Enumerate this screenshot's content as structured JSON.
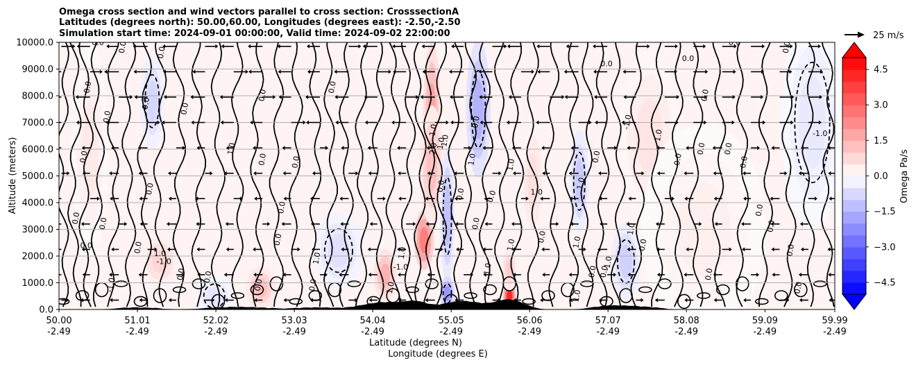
{
  "chart_data": {
    "type": "contourf",
    "title_lines": [
      "Omega cross section and wind vectors parallel to cross section: CrosssectionA",
      "Latitudes (degrees north): 50.00,60.00, Longitudes (degrees east): -2.50,-2.50",
      "Simulation start time: 2024-09-01 00:00:00, Valid time: 2024-09-02 22:00:00"
    ],
    "ylabel": "Altitude (meters)",
    "xlabel_lines": [
      "Latitude (degrees N)",
      "Longitude (degrees E)"
    ],
    "ylim": [
      0,
      10000
    ],
    "xlim": [
      50.0,
      59.99
    ],
    "grid": "horizontal",
    "y_ticks": [
      {
        "value": 0,
        "label": "0.0"
      },
      {
        "value": 1000,
        "label": "1000.0"
      },
      {
        "value": 2000,
        "label": "2000.0"
      },
      {
        "value": 3000,
        "label": "3000.0"
      },
      {
        "value": 4000,
        "label": "4000.0"
      },
      {
        "value": 5000,
        "label": "5000.0"
      },
      {
        "value": 6000,
        "label": "6000.0"
      },
      {
        "value": 7000,
        "label": "7000.0"
      },
      {
        "value": 8000,
        "label": "8000.0"
      },
      {
        "value": 9000,
        "label": "9000.0"
      },
      {
        "value": 10000,
        "label": "10000.0"
      }
    ],
    "x_ticks": [
      {
        "value": 50.0,
        "lat": "50.00",
        "lon": "-2.49"
      },
      {
        "value": 51.01,
        "lat": "51.01",
        "lon": "-2.49"
      },
      {
        "value": 52.02,
        "lat": "52.02",
        "lon": "-2.49"
      },
      {
        "value": 53.03,
        "lat": "53.03",
        "lon": "-2.49"
      },
      {
        "value": 54.04,
        "lat": "54.04",
        "lon": "-2.49"
      },
      {
        "value": 55.05,
        "lat": "55.05",
        "lon": "-2.49"
      },
      {
        "value": 56.06,
        "lat": "56.06",
        "lon": "-2.49"
      },
      {
        "value": 57.07,
        "lat": "57.07",
        "lon": "-2.49"
      },
      {
        "value": 58.08,
        "lat": "58.08",
        "lon": "-2.49"
      },
      {
        "value": 59.09,
        "lat": "59.09",
        "lon": "-2.49"
      },
      {
        "value": 59.99,
        "lat": "59.99",
        "lon": "-2.49"
      }
    ],
    "colorbar": {
      "label": "Omega Pa/s",
      "range": [
        -5.0,
        5.0
      ],
      "step": 0.5,
      "extend": "both",
      "ticks": [
        {
          "value": 4.5,
          "label": "4.5"
        },
        {
          "value": 3.0,
          "label": "3.0"
        },
        {
          "value": 1.5,
          "label": "1.5"
        },
        {
          "value": 0.0,
          "label": "0.0"
        },
        {
          "value": -1.5,
          "label": "−1.5"
        },
        {
          "value": -3.0,
          "label": "−3.0"
        },
        {
          "value": -4.5,
          "label": "−4.5"
        }
      ]
    },
    "quiver_key": {
      "label": "25 m/s",
      "value": 25
    },
    "omega_field": [
      {
        "lat": 54.7,
        "alt": 2600,
        "value": 2.5,
        "slat": 0.08,
        "salt": 700
      },
      {
        "lat": 54.8,
        "alt": 7300,
        "value": 1.8,
        "slat": 0.07,
        "salt": 1700
      },
      {
        "lat": 54.8,
        "alt": 5400,
        "value": 1.2,
        "slat": 0.1,
        "salt": 1400
      },
      {
        "lat": 55.8,
        "alt": 500,
        "value": 4.2,
        "slat": 0.05,
        "salt": 300
      },
      {
        "lat": 55.8,
        "alt": 1500,
        "value": 1.0,
        "slat": 0.06,
        "salt": 500
      },
      {
        "lat": 54.2,
        "alt": 1300,
        "value": 1.5,
        "slat": 0.09,
        "salt": 600
      },
      {
        "lat": 52.6,
        "alt": 800,
        "value": 1.2,
        "slat": 0.12,
        "salt": 500
      },
      {
        "lat": 51.3,
        "alt": 1800,
        "value": 0.8,
        "slat": 0.15,
        "salt": 600
      },
      {
        "lat": 50.4,
        "alt": 6000,
        "value": 0.4,
        "slat": 0.15,
        "salt": 2500
      },
      {
        "lat": 56.1,
        "alt": 4800,
        "value": 0.6,
        "slat": 0.1,
        "salt": 1500
      },
      {
        "lat": 57.6,
        "alt": 6500,
        "value": 0.5,
        "slat": 0.25,
        "salt": 2000
      },
      {
        "lat": 58.3,
        "alt": 3000,
        "value": 0.3,
        "slat": 0.5,
        "salt": 2500
      },
      {
        "lat": 55.4,
        "alt": 7500,
        "value": -1.5,
        "slat": 0.1,
        "salt": 1600
      },
      {
        "lat": 55.0,
        "alt": 3500,
        "value": -1.2,
        "slat": 0.06,
        "salt": 1600
      },
      {
        "lat": 55.0,
        "alt": 600,
        "value": -2.0,
        "slat": 0.06,
        "salt": 400
      },
      {
        "lat": 56.7,
        "alt": 4800,
        "value": -1.0,
        "slat": 0.08,
        "salt": 1200
      },
      {
        "lat": 57.3,
        "alt": 1800,
        "value": -0.9,
        "slat": 0.12,
        "salt": 900
      },
      {
        "lat": 51.2,
        "alt": 7800,
        "value": -0.8,
        "slat": 0.1,
        "salt": 1100
      },
      {
        "lat": 53.6,
        "alt": 2200,
        "value": -0.6,
        "slat": 0.2,
        "salt": 900
      },
      {
        "lat": 59.7,
        "alt": 7000,
        "value": -0.4,
        "slat": 0.25,
        "salt": 2500
      },
      {
        "lat": 52.0,
        "alt": 500,
        "value": -0.5,
        "slat": 0.15,
        "salt": 500
      }
    ],
    "contour_labels": [
      {
        "lat": 50.5,
        "alt": 9900,
        "text": "0.0",
        "rot": 0
      },
      {
        "lat": 50.85,
        "alt": 9800,
        "text": "0.0",
        "rot": -80
      },
      {
        "lat": 51.35,
        "alt": 9600,
        "text": "0.0",
        "rot": -80
      },
      {
        "lat": 50.35,
        "alt": 5700,
        "text": "0.0",
        "rot": -80
      },
      {
        "lat": 50.65,
        "alt": 7200,
        "text": "0.0",
        "rot": -80
      },
      {
        "lat": 51.15,
        "alt": 7700,
        "text": "0.0",
        "rot": -80
      },
      {
        "lat": 51.65,
        "alt": 7500,
        "text": "0.0",
        "rot": -80
      },
      {
        "lat": 52.65,
        "alt": 8000,
        "text": "0.0",
        "rot": -80
      },
      {
        "lat": 53.55,
        "alt": 8300,
        "text": "0.0",
        "rot": -80
      },
      {
        "lat": 52.25,
        "alt": 6000,
        "text": "1.0",
        "rot": -80
      },
      {
        "lat": 52.65,
        "alt": 5600,
        "text": "0.0",
        "rot": -80
      },
      {
        "lat": 53.08,
        "alt": 5500,
        "text": "0.0",
        "rot": -80
      },
      {
        "lat": 51.2,
        "alt": 4500,
        "text": "0.0",
        "rot": -80
      },
      {
        "lat": 50.25,
        "alt": 3400,
        "text": "0.0",
        "rot": -80
      },
      {
        "lat": 50.6,
        "alt": 3200,
        "text": "0.0",
        "rot": -80
      },
      {
        "lat": 50.35,
        "alt": 2300,
        "text": "0.0",
        "rot": 0
      },
      {
        "lat": 51.3,
        "alt": 2000,
        "text": "1.0",
        "rot": 0
      },
      {
        "lat": 51.35,
        "alt": 1700,
        "text": "-1.0",
        "rot": 0
      },
      {
        "lat": 51.05,
        "alt": 2300,
        "text": "0.0",
        "rot": -80
      },
      {
        "lat": 50.7,
        "alt": 900,
        "text": "-1.0",
        "rot": -80
      },
      {
        "lat": 51.6,
        "alt": 1300,
        "text": "0.0",
        "rot": -80
      },
      {
        "lat": 51.95,
        "alt": 1200,
        "text": "0.0",
        "rot": -80
      },
      {
        "lat": 52.85,
        "alt": 2600,
        "text": "0.0",
        "rot": -80
      },
      {
        "lat": 53.35,
        "alt": 1900,
        "text": "1.0",
        "rot": -80
      },
      {
        "lat": 52.6,
        "alt": 900,
        "text": "0.0",
        "rot": -80
      },
      {
        "lat": 53.3,
        "alt": 900,
        "text": "0.0",
        "rot": -80
      },
      {
        "lat": 54.45,
        "alt": 2100,
        "text": "1.0",
        "rot": -80
      },
      {
        "lat": 54.4,
        "alt": 1500,
        "text": "-1.0",
        "rot": 0
      },
      {
        "lat": 54.3,
        "alt": 800,
        "text": "1.0",
        "rot": -80
      },
      {
        "lat": 54.85,
        "alt": 6700,
        "text": "1.0",
        "rot": -80
      },
      {
        "lat": 54.85,
        "alt": 6000,
        "text": "2.0",
        "rot": -80
      },
      {
        "lat": 55.0,
        "alt": 6300,
        "text": "1.0",
        "rot": -80
      },
      {
        "lat": 54.95,
        "alt": 6200,
        "text": "1.0",
        "rot": -80
      },
      {
        "lat": 55.35,
        "alt": 5600,
        "text": "1.0",
        "rot": -80
      },
      {
        "lat": 55.4,
        "alt": 7000,
        "text": "0.0",
        "rot": -80
      },
      {
        "lat": 54.95,
        "alt": 4600,
        "text": "0.0",
        "rot": -80
      },
      {
        "lat": 55.2,
        "alt": 4300,
        "text": "0.0",
        "rot": -80
      },
      {
        "lat": 55.4,
        "alt": 3200,
        "text": "0.0",
        "rot": -80
      },
      {
        "lat": 55.55,
        "alt": 1500,
        "text": "1.0",
        "rot": -80
      },
      {
        "lat": 55.6,
        "alt": 4200,
        "text": "0.0",
        "rot": -70
      },
      {
        "lat": 55.85,
        "alt": 5400,
        "text": "1.0",
        "rot": -80
      },
      {
        "lat": 56.15,
        "alt": 4300,
        "text": "1.0",
        "rot": 0
      },
      {
        "lat": 55.85,
        "alt": 2400,
        "text": "1.0",
        "rot": -80
      },
      {
        "lat": 56.25,
        "alt": 2700,
        "text": "0.0",
        "rot": -80
      },
      {
        "lat": 56.7,
        "alt": 2500,
        "text": "1.0",
        "rot": -80
      },
      {
        "lat": 56.9,
        "alt": 1400,
        "text": "0.0",
        "rot": -80
      },
      {
        "lat": 57.05,
        "alt": 1400,
        "text": "0.0",
        "rot": -80
      },
      {
        "lat": 56.7,
        "alt": 500,
        "text": "1.0",
        "rot": -80
      },
      {
        "lat": 56.95,
        "alt": 5700,
        "text": "0.0",
        "rot": -80
      },
      {
        "lat": 56.75,
        "alt": 4700,
        "text": "1.0",
        "rot": -80
      },
      {
        "lat": 57.05,
        "alt": 9100,
        "text": "0.0",
        "rot": 0
      },
      {
        "lat": 58.1,
        "alt": 9300,
        "text": "0.0",
        "rot": 0
      },
      {
        "lat": 58.35,
        "alt": 8000,
        "text": "0.0",
        "rot": -80
      },
      {
        "lat": 57.75,
        "alt": 6500,
        "text": "1.0",
        "rot": -80
      },
      {
        "lat": 57.35,
        "alt": 7000,
        "text": "-1.0",
        "rot": -80
      },
      {
        "lat": 57.4,
        "alt": 3000,
        "text": "1.0",
        "rot": -80
      },
      {
        "lat": 57.1,
        "alt": 1700,
        "text": "-1.0",
        "rot": -80
      },
      {
        "lat": 57.55,
        "alt": 2400,
        "text": "0.0",
        "rot": -80
      },
      {
        "lat": 58.3,
        "alt": 6000,
        "text": "0.0",
        "rot": -80
      },
      {
        "lat": 58.65,
        "alt": 6000,
        "text": "0.0",
        "rot": -80
      },
      {
        "lat": 58.85,
        "alt": 5500,
        "text": "0.0",
        "rot": -80
      },
      {
        "lat": 58.0,
        "alt": 5600,
        "text": "0.0",
        "rot": -80
      },
      {
        "lat": 59.2,
        "alt": 3100,
        "text": "0.0",
        "rot": -80
      },
      {
        "lat": 59.05,
        "alt": 3700,
        "text": "0.0",
        "rot": -80
      },
      {
        "lat": 58.4,
        "alt": 1300,
        "text": "0.0",
        "rot": -80
      },
      {
        "lat": 59.45,
        "alt": 2200,
        "text": "0.0",
        "rot": -80
      },
      {
        "lat": 59.55,
        "alt": 800,
        "text": "0.0",
        "rot": -80
      },
      {
        "lat": 59.8,
        "alt": 6500,
        "text": "-1.0",
        "rot": 0
      },
      {
        "lat": 59.4,
        "alt": 9800,
        "text": "0.0",
        "rot": -80
      },
      {
        "lat": 58.7,
        "alt": 9900,
        "text": "0.0",
        "rot": 0
      },
      {
        "lat": 52.9,
        "alt": 3800,
        "text": "0.0",
        "rot": -80
      },
      {
        "lat": 50.4,
        "alt": 8300,
        "text": "0.0",
        "rot": -80
      }
    ]
  }
}
